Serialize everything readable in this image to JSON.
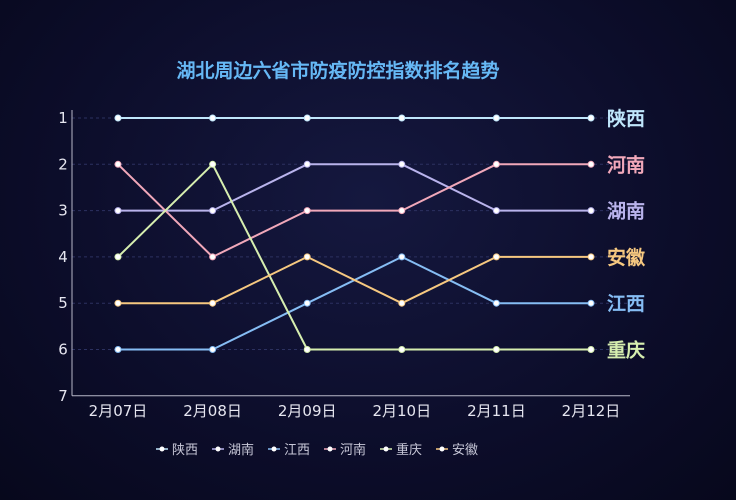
{
  "chart_data": {
    "type": "line",
    "title": "湖北周边六省市防疫防控指数排名趋势",
    "xlabel": "",
    "ylabel": "",
    "categories": [
      "2月07日",
      "2月08日",
      "2月09日",
      "2月10日",
      "2月11日",
      "2月12日"
    ],
    "y_ticks": [
      "1",
      "2",
      "3",
      "4",
      "5",
      "6",
      "7"
    ],
    "ylim": [
      1,
      7
    ],
    "y_inverted": true,
    "grid": "horizontal-dashed",
    "legend_position": "bottom",
    "series": [
      {
        "name": "陕西",
        "color": "#bfe6fb",
        "values": [
          1,
          1,
          1,
          1,
          1,
          1
        ],
        "end_label": "陕西"
      },
      {
        "name": "湖南",
        "color": "#b9b3ec",
        "values": [
          3,
          3,
          2,
          2,
          3,
          3
        ],
        "end_label": "湖南"
      },
      {
        "name": "江西",
        "color": "#86bdf4",
        "values": [
          6,
          6,
          5,
          4,
          5,
          5
        ],
        "end_label": "江西"
      },
      {
        "name": "河南",
        "color": "#f1a8ba",
        "values": [
          2,
          4,
          3,
          3,
          2,
          2
        ],
        "end_label": "河南"
      },
      {
        "name": "重庆",
        "color": "#d6eeaf",
        "values": [
          4,
          2,
          6,
          6,
          6,
          6
        ],
        "end_label": "重庆"
      },
      {
        "name": "安徽",
        "color": "#f6c880",
        "values": [
          5,
          5,
          4,
          5,
          4,
          4
        ],
        "end_label": "安徽"
      }
    ]
  }
}
